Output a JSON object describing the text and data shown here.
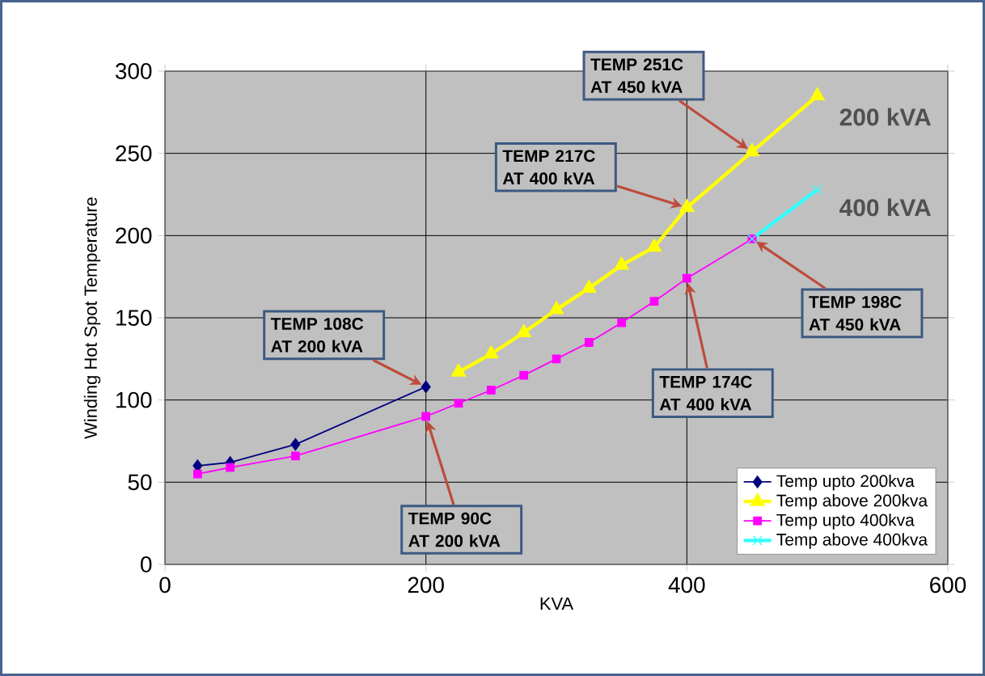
{
  "chart_data": {
    "type": "line",
    "xlabel": "KVA",
    "ylabel": "Winding Hot Spot Temperature",
    "xlim": [
      0,
      600
    ],
    "xticks": [
      0,
      200,
      400,
      600
    ],
    "ylim": [
      0,
      300
    ],
    "yticks": [
      0,
      50,
      100,
      150,
      200,
      250,
      300
    ],
    "grid": true,
    "legend": "bottom right",
    "series": [
      {
        "name": "Temp upto 200kva",
        "color": "#000080",
        "marker": "diamond",
        "x": [
          25,
          50,
          100,
          200
        ],
        "values": [
          60,
          62,
          73,
          108
        ]
      },
      {
        "name": "Temp above 200kva",
        "color": "#ffff00",
        "marker": "triangle",
        "x": [
          225,
          250,
          275,
          300,
          325,
          350,
          375,
          400,
          450,
          500
        ],
        "values": [
          117,
          128,
          141,
          155,
          168,
          182,
          193,
          217,
          251,
          285
        ]
      },
      {
        "name": "Temp upto 400kva",
        "color": "#ff00ff",
        "marker": "square",
        "x": [
          25,
          50,
          100,
          200,
          225,
          250,
          275,
          300,
          325,
          350,
          375,
          400,
          450
        ],
        "values": [
          55,
          59,
          66,
          90,
          98,
          106,
          115,
          125,
          135,
          147,
          160,
          174,
          198
        ]
      },
      {
        "name": "Temp above 400kva",
        "color": "#33ffff",
        "marker": "cross",
        "x": [
          450,
          500
        ],
        "values": [
          198,
          228
        ]
      }
    ],
    "annotations": [
      {
        "text": "TEMP 108C AT 200 kVA",
        "x": 200,
        "y": 108
      },
      {
        "text": "TEMP 90C AT 200 kVA",
        "x": 200,
        "y": 90
      },
      {
        "text": "TEMP 217C AT 400 kVA",
        "x": 400,
        "y": 217
      },
      {
        "text": "TEMP 251C AT 450 kVA",
        "x": 450,
        "y": 251
      },
      {
        "text": "TEMP 174C AT 400 kVA",
        "x": 400,
        "y": 174
      },
      {
        "text": "TEMP 198C AT 450 kVA",
        "x": 450,
        "y": 198
      },
      {
        "text": "200 kVA",
        "x": 500,
        "y": 285
      },
      {
        "text": "400 kVA",
        "x": 500,
        "y": 228
      }
    ]
  }
}
